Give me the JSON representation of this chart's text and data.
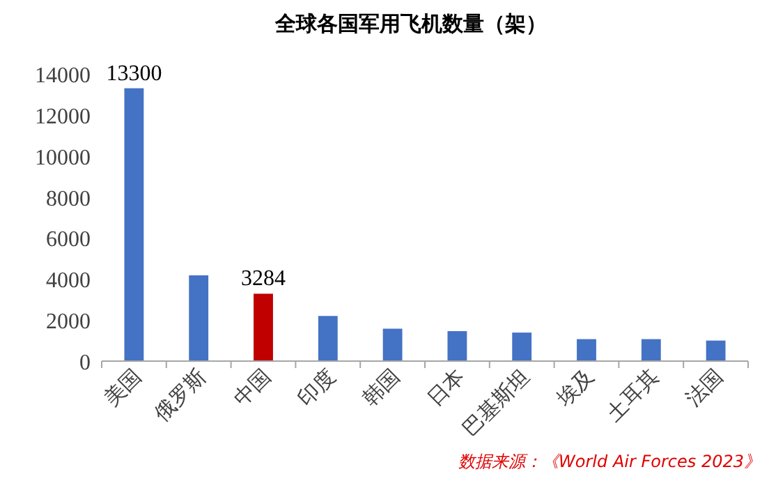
{
  "chart_data": {
    "type": "bar",
    "title": "全球各国军用飞机数量（架）",
    "categories": [
      "美国",
      "俄罗斯",
      "中国",
      "印度",
      "韩国",
      "日本",
      "巴基斯坦",
      "埃及",
      "土耳其",
      "法国"
    ],
    "values": [
      13300,
      4180,
      3284,
      2200,
      1580,
      1460,
      1390,
      1070,
      1070,
      1000
    ],
    "colors": [
      "#4472c4",
      "#4472c4",
      "#c00000",
      "#4472c4",
      "#4472c4",
      "#4472c4",
      "#4472c4",
      "#4472c4",
      "#4472c4",
      "#4472c4"
    ],
    "value_labels": [
      "13300",
      null,
      "3284",
      null,
      null,
      null,
      null,
      null,
      null,
      null
    ],
    "ylim": [
      0,
      14000
    ],
    "yticks": [
      0,
      2000,
      4000,
      6000,
      8000,
      10000,
      12000,
      14000
    ],
    "grid": false,
    "annotations": [
      "数据来源：《World Air Forces 2023》"
    ]
  }
}
